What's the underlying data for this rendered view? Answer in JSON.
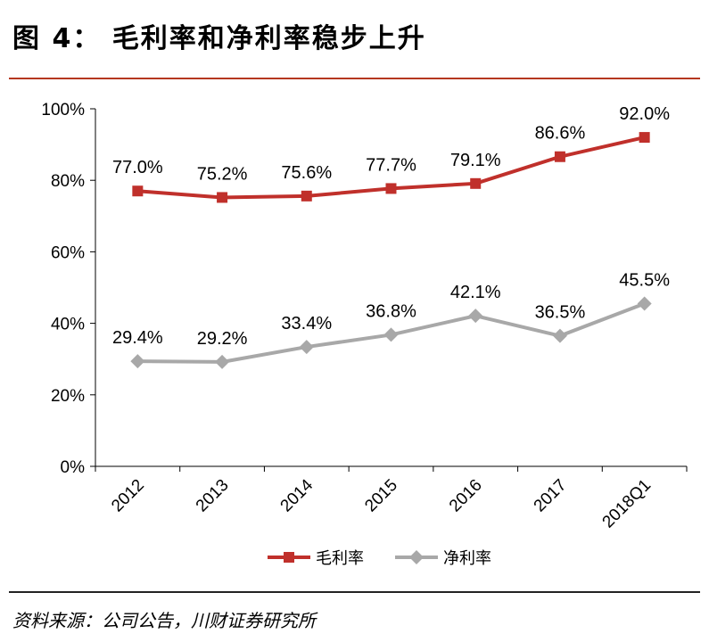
{
  "title": "图 4： 毛利率和净利率稳步上升",
  "source": "资料来源：公司公告，川财证券研究所",
  "colors": {
    "gross": "#c0302b",
    "net": "#a8a8a8",
    "rule": "#b5371f"
  },
  "chart_data": {
    "type": "line",
    "categories": [
      "2012",
      "2013",
      "2014",
      "2015",
      "2016",
      "2017",
      "2018Q1"
    ],
    "yticks": [
      "0%",
      "20%",
      "40%",
      "60%",
      "80%",
      "100%"
    ],
    "ylim": [
      0,
      100
    ],
    "legend_position": "bottom",
    "series": [
      {
        "name": "毛利率",
        "marker": "square",
        "values": [
          77.0,
          75.2,
          75.6,
          77.7,
          79.1,
          86.6,
          92.0
        ],
        "labels": [
          "77.0%",
          "75.2%",
          "75.6%",
          "77.7%",
          "79.1%",
          "86.6%",
          "92.0%"
        ]
      },
      {
        "name": "净利率",
        "marker": "diamond",
        "values": [
          29.4,
          29.2,
          33.4,
          36.8,
          42.1,
          36.5,
          45.5
        ],
        "labels": [
          "29.4%",
          "29.2%",
          "33.4%",
          "36.8%",
          "42.1%",
          "36.5%",
          "45.5%"
        ]
      }
    ]
  }
}
